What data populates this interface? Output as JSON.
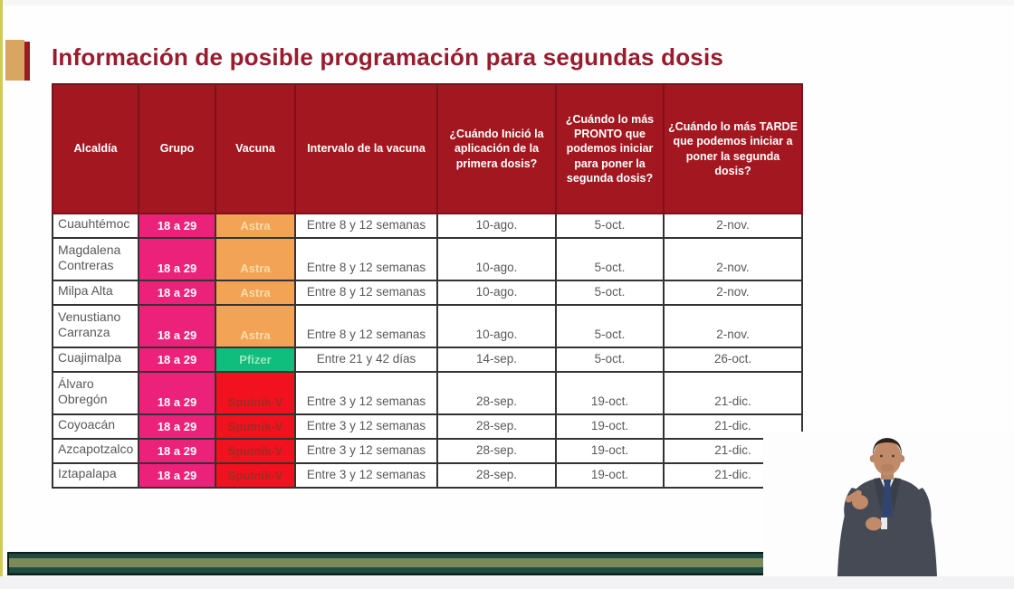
{
  "page": {
    "title": "Información de posible programación para segundas dosis"
  },
  "colors": {
    "title_color": "#9a1b2d",
    "header_bg": "#a31820",
    "header_border": "#7d111b",
    "grupo_bg": "#ec2179",
    "astra_bg": "#f2a356",
    "astra_text": "#f6dca8",
    "pfizer_bg": "#0fbe7c",
    "pfizer_text": "#9ee5c2",
    "sputnik_bg": "#f2111f",
    "sputnik_text": "#a02b22",
    "accent_gold": "#d8a660",
    "accent_red": "#9b1b24",
    "accent_yellow": "#cfcb54",
    "band_teal": "#204b42",
    "band_olive": "#7c8a58"
  },
  "icons": {
    "interpreter": "sign-language-interpreter"
  },
  "table": {
    "headers": [
      "Alcaldía",
      "Grupo",
      "Vacuna",
      "Intervalo de la vacuna",
      "¿Cuándo Inició la aplicación de la primera dosis?",
      "¿Cuándo lo más PRONTO que podemos iniciar para poner la segunda dosis?",
      "¿Cuándo lo más TARDE que podemos iniciar a poner la segunda dosis?"
    ],
    "rows": [
      {
        "alcaldia": "Cuauhtémoc",
        "grupo": "18 a 29",
        "vacuna": "Astra",
        "vacuna_key": "astra",
        "intervalo": "Entre 8 y 12 semanas",
        "inicio": "10-ago.",
        "pronto": "5-oct.",
        "tarde": "2-nov.",
        "tall": false
      },
      {
        "alcaldia": "Magdalena Contreras",
        "grupo": "18 a 29",
        "vacuna": "Astra",
        "vacuna_key": "astra",
        "intervalo": "Entre 8 y 12 semanas",
        "inicio": "10-ago.",
        "pronto": "5-oct.",
        "tarde": "2-nov.",
        "tall": true
      },
      {
        "alcaldia": "Milpa Alta",
        "grupo": "18 a 29",
        "vacuna": "Astra",
        "vacuna_key": "astra",
        "intervalo": "Entre 8 y 12 semanas",
        "inicio": "10-ago.",
        "pronto": "5-oct.",
        "tarde": "2-nov.",
        "tall": false
      },
      {
        "alcaldia": "Venustiano Carranza",
        "grupo": "18 a 29",
        "vacuna": "Astra",
        "vacuna_key": "astra",
        "intervalo": "Entre 8 y 12 semanas",
        "inicio": "10-ago.",
        "pronto": "5-oct.",
        "tarde": "2-nov.",
        "tall": true
      },
      {
        "alcaldia": "Cuajimalpa",
        "grupo": "18 a 29",
        "vacuna": "Pfizer",
        "vacuna_key": "pfizer",
        "intervalo": "Entre 21 y 42 días",
        "inicio": "14-sep.",
        "pronto": "5-oct.",
        "tarde": "26-oct.",
        "tall": false
      },
      {
        "alcaldia": "Álvaro Obregón",
        "grupo": "18 a 29",
        "vacuna": "Sputnik-V",
        "vacuna_key": "sputnik",
        "intervalo": "Entre 3 y 12 semanas",
        "inicio": "28-sep.",
        "pronto": "19-oct.",
        "tarde": "21-dic.",
        "tall": true
      },
      {
        "alcaldia": "Coyoacán",
        "grupo": "18 a 29",
        "vacuna": "Sputnik-V",
        "vacuna_key": "sputnik",
        "intervalo": "Entre 3 y 12 semanas",
        "inicio": "28-sep.",
        "pronto": "19-oct.",
        "tarde": "21-dic.",
        "tall": false
      },
      {
        "alcaldia": "Azcapotzalco",
        "grupo": "18 a 29",
        "vacuna": "Sputnik-V",
        "vacuna_key": "sputnik",
        "intervalo": "Entre 3 y 12 semanas",
        "inicio": "28-sep.",
        "pronto": "19-oct.",
        "tarde": "21-dic.",
        "tall": false
      },
      {
        "alcaldia": "Iztapalapa",
        "grupo": "18 a 29",
        "vacuna": "Sputnik-V",
        "vacuna_key": "sputnik",
        "intervalo": "Entre 3 y 12 semanas",
        "inicio": "28-sep.",
        "pronto": "19-oct.",
        "tarde": "21-dic.",
        "tall": false
      }
    ]
  }
}
